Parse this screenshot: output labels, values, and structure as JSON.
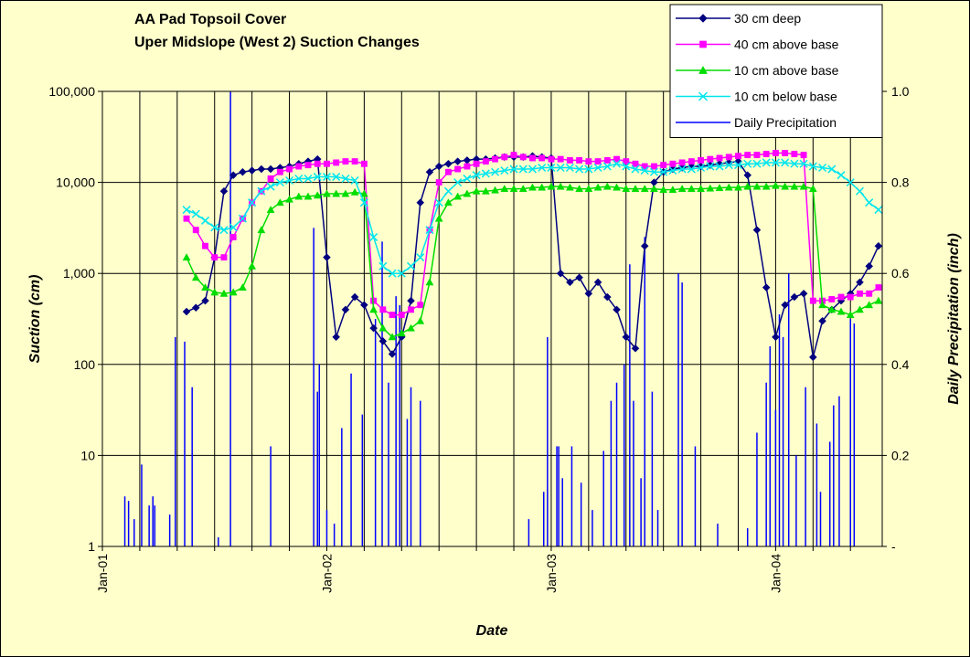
{
  "chart_data": {
    "type": "line",
    "title": "AA Pad Topsoil Cover",
    "subtitle": "Uper Midslope (West 2) Suction Changes",
    "xlabel": "Date",
    "ylabel": "Suction (cm)",
    "y2label": "Daily Precipitation (inch)",
    "ylog": true,
    "grid": true,
    "legend": "upper right",
    "xlim": [
      0,
      41.7
    ],
    "xticks": [
      {
        "value": 0,
        "label": "Jan-01"
      },
      {
        "value": 12,
        "label": "Jan-02"
      },
      {
        "value": 24,
        "label": "Jan-03"
      },
      {
        "value": 36,
        "label": "Jan-04"
      }
    ],
    "xminor_ticks": [
      2,
      4,
      6,
      8,
      10,
      14,
      16,
      18,
      20,
      22,
      26,
      28,
      30,
      32,
      34,
      38,
      40
    ],
    "ylim": [
      1,
      100000
    ],
    "yticks": [
      1,
      10,
      100,
      {
        "value": 1000,
        "label": "1,000"
      },
      {
        "value": 10000,
        "label": "10,000"
      },
      {
        "value": 100000,
        "label": "100,000"
      }
    ],
    "y2lim": [
      0,
      1
    ],
    "y2ticks": [
      {
        "value": 0,
        "label": "-"
      },
      0.2,
      0.4,
      0.6,
      0.8,
      {
        "value": 1,
        "label": "1.0"
      }
    ],
    "x": [
      4.5,
      5,
      5.5,
      6,
      6.5,
      7,
      7.5,
      8,
      8.5,
      9,
      9.5,
      10,
      10.5,
      11,
      11.5,
      12,
      12.5,
      13,
      13.5,
      14,
      14.5,
      15,
      15.5,
      16,
      16.5,
      17,
      17.5,
      18,
      18.5,
      19,
      19.5,
      20,
      20.5,
      21,
      21.5,
      22,
      22.5,
      23,
      23.5,
      24,
      24.5,
      25,
      25.5,
      26,
      26.5,
      27,
      27.5,
      28,
      28.5,
      29,
      29.5,
      30,
      30.5,
      31,
      31.5,
      32,
      32.5,
      33,
      33.5,
      34,
      34.5,
      35,
      35.5,
      36,
      36.5,
      37,
      37.5,
      38,
      38.5,
      39,
      39.5,
      40,
      40.5,
      41,
      41.5
    ],
    "series": [
      {
        "name": "30 cm deep",
        "color": "#000080",
        "marker": "diamond",
        "values": [
          380,
          420,
          500,
          1500,
          8000,
          12000,
          13000,
          13500,
          14000,
          14000,
          14500,
          15000,
          16000,
          17000,
          18000,
          1500,
          200,
          400,
          550,
          450,
          250,
          180,
          130,
          200,
          500,
          6000,
          13000,
          15000,
          16000,
          17000,
          17500,
          18000,
          18000,
          18500,
          19000,
          19000,
          19000,
          19500,
          19000,
          18500,
          1000,
          800,
          900,
          600,
          800,
          550,
          400,
          200,
          150,
          2000,
          10000,
          13000,
          14000,
          14500,
          15000,
          15000,
          15500,
          16000,
          16500,
          17000,
          12000,
          3000,
          700,
          200,
          450,
          550,
          600,
          120,
          300,
          400,
          500,
          600,
          800,
          1200,
          2000
        ]
      },
      {
        "name": "40 cm above base",
        "color": "#ff00ff",
        "marker": "square",
        "values": [
          4000,
          3000,
          2000,
          1500,
          1500,
          2500,
          4000,
          6000,
          8000,
          11000,
          13000,
          14000,
          15000,
          15500,
          16000,
          16000,
          16500,
          17000,
          17000,
          16000,
          500,
          400,
          350,
          350,
          400,
          450,
          3000,
          10000,
          13000,
          14000,
          15000,
          16000,
          17000,
          18000,
          19000,
          20000,
          19000,
          18500,
          18500,
          18000,
          18000,
          17500,
          17500,
          17000,
          17000,
          17500,
          18000,
          17000,
          16000,
          15000,
          15000,
          15500,
          16000,
          16500,
          17000,
          17500,
          18000,
          18500,
          19000,
          19500,
          20000,
          20000,
          20500,
          21000,
          21000,
          20500,
          20000,
          500,
          500,
          520,
          550,
          550,
          600,
          600,
          700
        ]
      },
      {
        "name": "10 cm above base",
        "color": "#00dd00",
        "marker": "triangle",
        "values": [
          1500,
          900,
          700,
          620,
          600,
          620,
          700,
          1200,
          3000,
          5000,
          6000,
          6500,
          7000,
          7000,
          7200,
          7500,
          7500,
          7500,
          7800,
          7500,
          400,
          250,
          200,
          220,
          250,
          300,
          800,
          4000,
          6000,
          7000,
          7500,
          8000,
          8000,
          8200,
          8500,
          8500,
          8500,
          8800,
          8800,
          9000,
          9000,
          8800,
          8500,
          8500,
          8800,
          9000,
          8800,
          8500,
          8500,
          8500,
          8500,
          8300,
          8300,
          8500,
          8500,
          8500,
          8600,
          8700,
          8800,
          8800,
          9000,
          9000,
          9000,
          9200,
          9000,
          9000,
          9000,
          8500,
          450,
          400,
          380,
          350,
          400,
          450,
          500
        ]
      },
      {
        "name": "10 cm below base",
        "color": "#00e5ee",
        "marker": "x",
        "values": [
          5000,
          4500,
          3800,
          3200,
          3000,
          3200,
          4000,
          6000,
          8000,
          9000,
          10000,
          10500,
          11000,
          11000,
          11500,
          11500,
          11500,
          11000,
          10500,
          6000,
          2500,
          1200,
          1000,
          1000,
          1200,
          1500,
          3000,
          6000,
          8000,
          10000,
          11000,
          12000,
          12500,
          13000,
          13500,
          14000,
          14000,
          14000,
          14500,
          14500,
          14500,
          14500,
          14000,
          14000,
          14500,
          15000,
          16000,
          15000,
          14000,
          13500,
          13000,
          13000,
          13500,
          14000,
          14000,
          14500,
          15000,
          15000,
          15500,
          15500,
          16000,
          16000,
          16500,
          16500,
          16500,
          16000,
          16000,
          15000,
          14500,
          14000,
          12000,
          10000,
          8000,
          6000,
          5000
        ]
      },
      {
        "name": "Daily Precipitation",
        "color": "#0000ff",
        "axis": "y2",
        "kind": "spikes",
        "x": [
          1.2,
          1.4,
          1.7,
          2.1,
          2.5,
          2.7,
          2.8,
          3.6,
          3.9,
          4.4,
          4.8,
          6.2,
          6.85,
          9,
          11.3,
          11.5,
          11.6,
          12,
          12.4,
          12.8,
          13.3,
          13.9,
          14.6,
          14.96,
          15.3,
          15.7,
          15.9,
          16.3,
          16.5,
          17,
          22.8,
          23.6,
          23.8,
          24.3,
          24.4,
          24.6,
          25.1,
          25.6,
          26.2,
          26.8,
          27.2,
          27.5,
          27.9,
          28.2,
          28.4,
          28.8,
          29,
          29.4,
          29.7,
          30.8,
          31,
          31.7,
          32.9,
          34.5,
          35,
          35.5,
          35.7,
          36,
          36.2,
          36.4,
          36.7,
          37.1,
          37.6,
          38.2,
          38.4,
          38.9,
          39.1,
          39.4,
          40,
          40.2
        ],
        "values": [
          0.11,
          0.1,
          0.06,
          0.18,
          0.09,
          0.11,
          0.09,
          0.07,
          0.46,
          0.45,
          0.35,
          0.02,
          1.0,
          0.22,
          0.7,
          0.34,
          0.4,
          0.08,
          0.05,
          0.26,
          0.38,
          0.29,
          0.5,
          0.67,
          0.36,
          0.55,
          0.53,
          0.28,
          0.35,
          0.32,
          0.06,
          0.12,
          0.46,
          0.22,
          0.22,
          0.15,
          0.22,
          0.14,
          0.08,
          0.21,
          0.32,
          0.36,
          0.4,
          0.62,
          0.32,
          0.15,
          0.68,
          0.34,
          0.08,
          0.6,
          0.58,
          0.22,
          0.05,
          0.04,
          0.25,
          0.36,
          0.44,
          0.3,
          0.51,
          0.46,
          0.6,
          0.2,
          0.35,
          0.27,
          0.12,
          0.23,
          0.31,
          0.33,
          0.5,
          0.49
        ]
      }
    ]
  }
}
